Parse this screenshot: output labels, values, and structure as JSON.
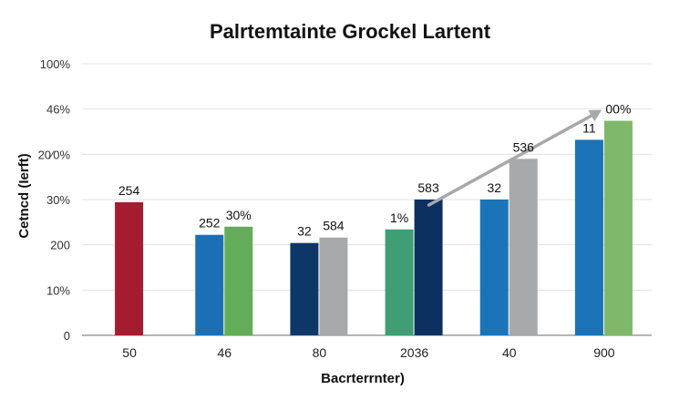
{
  "chart_data": {
    "type": "bar",
    "title": "Palrtemtainte Grockel Lartent",
    "xlabel": "Bacrterrnter)",
    "ylabel": "Cetncd (Ierft)",
    "ylim": [
      0,
      100
    ],
    "grid": true,
    "y_tick_labels": [
      "0",
      "10%",
      "200",
      "30%",
      "20⁄0%",
      "46%",
      "100%"
    ],
    "categories": [
      "50",
      "46",
      "80",
      "2036",
      "40",
      "900"
    ],
    "bars": [
      {
        "value": 49,
        "color": "#a51c30",
        "label": "254"
      },
      {
        "value": 37,
        "color": "#1b6fb5",
        "label": "252"
      },
      {
        "value": 40,
        "color": "#63ad5a",
        "label": "30%"
      },
      {
        "value": 34,
        "color": "#0c3767",
        "label": "32"
      },
      {
        "value": 36,
        "color": "#a7a9ab",
        "label": "584"
      },
      {
        "value": 39,
        "color": "#3f9e74",
        "label": "1%"
      },
      {
        "value": 50,
        "color": "#0c3060",
        "label": "583"
      },
      {
        "value": 50,
        "color": "#1b74b8",
        "label": "32"
      },
      {
        "value": 65,
        "color": "#a7a9ab",
        "label": "536"
      },
      {
        "value": 72,
        "color": "#1b72b7",
        "label": "11"
      },
      {
        "value": 79,
        "color": "#7fb86a",
        "label": "00%"
      }
    ],
    "trend_arrow": {
      "from": {
        "x": "2036",
        "y": 50
      },
      "to": {
        "x": "900",
        "y": 82
      },
      "color": "#a6a8aa"
    }
  }
}
